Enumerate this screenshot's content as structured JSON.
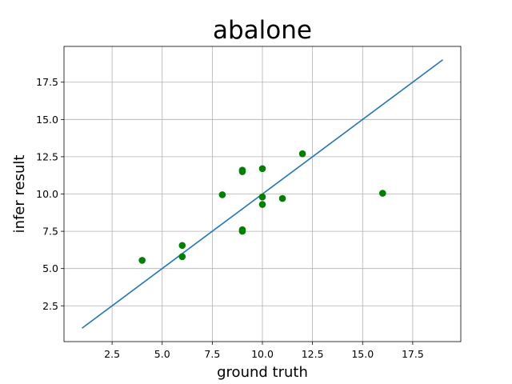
{
  "chart_data": {
    "type": "scatter",
    "title": "abalone",
    "xlabel": "ground truth",
    "ylabel": "infer result",
    "xlim": [
      0.1,
      19.9
    ],
    "ylim": [
      0.1,
      19.9
    ],
    "xticks": [
      2.5,
      5.0,
      7.5,
      10.0,
      12.5,
      15.0,
      17.5
    ],
    "yticks": [
      2.5,
      5.0,
      7.5,
      10.0,
      12.5,
      15.0,
      17.5
    ],
    "xtick_labels": [
      "2.5",
      "5.0",
      "7.5",
      "10.0",
      "12.5",
      "15.0",
      "17.5"
    ],
    "ytick_labels": [
      "2.5",
      "5.0",
      "7.5",
      "10.0",
      "12.5",
      "15.0",
      "17.5"
    ],
    "grid": true,
    "series": [
      {
        "type": "scatter",
        "color": "#008000",
        "points": [
          {
            "x": 4,
            "y": 5.55
          },
          {
            "x": 6,
            "y": 6.55
          },
          {
            "x": 6,
            "y": 5.8
          },
          {
            "x": 8,
            "y": 9.95
          },
          {
            "x": 9,
            "y": 11.6
          },
          {
            "x": 9,
            "y": 11.5
          },
          {
            "x": 9,
            "y": 7.6
          },
          {
            "x": 9,
            "y": 7.5
          },
          {
            "x": 10,
            "y": 11.7
          },
          {
            "x": 10,
            "y": 9.8
          },
          {
            "x": 10,
            "y": 9.3
          },
          {
            "x": 11,
            "y": 9.7
          },
          {
            "x": 12,
            "y": 12.7
          },
          {
            "x": 16,
            "y": 10.05
          }
        ]
      },
      {
        "type": "line",
        "color": "#1f77b4",
        "points": [
          {
            "x": 1,
            "y": 1
          },
          {
            "x": 19,
            "y": 19
          }
        ]
      }
    ]
  }
}
